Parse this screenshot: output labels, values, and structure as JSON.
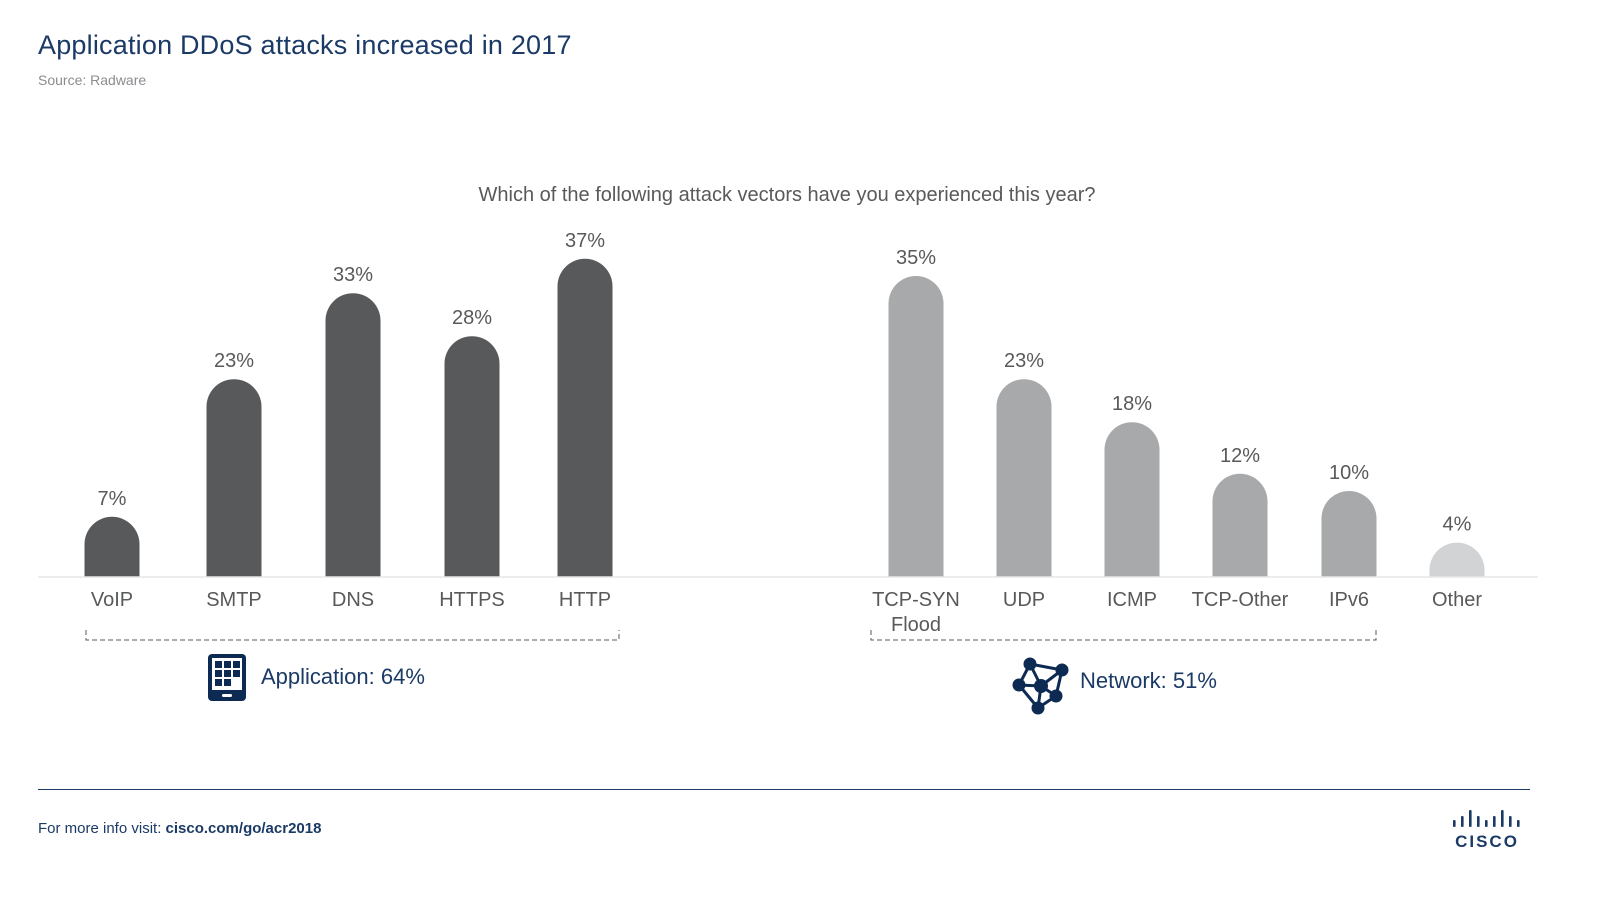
{
  "title": "Application DDoS attacks increased in 2017",
  "source": "Source: Radware",
  "question": "Which of the following attack vectors have you experienced this year?",
  "groups": {
    "application": {
      "label": "Application: 64%",
      "icon": "tablet-grid-icon"
    },
    "network": {
      "label": "Network: 51%",
      "icon": "network-nodes-icon"
    }
  },
  "footer": {
    "prefix": "For more info visit: ",
    "link": "cisco.com/go/acr2018"
  },
  "logo": {
    "text": "CISCO"
  },
  "colors": {
    "application_bar": "#58595b",
    "network_bar": "#a7a9ab",
    "other_bar": "#d1d3d4",
    "title": "#1b3a66",
    "text": "#58595b"
  },
  "chart_data": {
    "type": "bar",
    "unit": "%",
    "ylim": [
      0,
      40
    ],
    "grid": false,
    "categories": [
      "VoIP",
      "SMTP",
      "DNS",
      "HTTPS",
      "HTTP",
      "TCP-SYN Flood",
      "UDP",
      "ICMP",
      "TCP-Other",
      "IPv6",
      "Other"
    ],
    "series": [
      {
        "values": [
          7,
          23,
          33,
          28,
          37,
          35,
          23,
          18,
          12,
          10,
          4
        ],
        "labels": [
          "7%",
          "23%",
          "33%",
          "28%",
          "37%",
          "35%",
          "23%",
          "18%",
          "12%",
          "10%",
          "4%"
        ],
        "groups": [
          "application",
          "application",
          "application",
          "application",
          "application",
          "network",
          "network",
          "network",
          "network",
          "network",
          "other"
        ]
      }
    ]
  }
}
